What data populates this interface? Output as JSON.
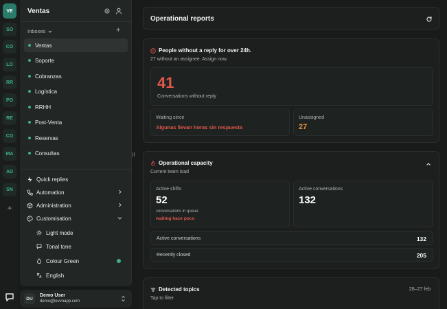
{
  "workspaces": [
    {
      "code": "VE",
      "active": true
    },
    {
      "code": "SO"
    },
    {
      "code": "CO"
    },
    {
      "code": "LO"
    },
    {
      "code": "RR"
    },
    {
      "code": "PO"
    },
    {
      "code": "RE"
    },
    {
      "code": "CO"
    },
    {
      "code": "MA"
    },
    {
      "code": "AD"
    },
    {
      "code": "SN"
    }
  ],
  "rail": {
    "add_label": "+"
  },
  "sidebar": {
    "title": "Ventas",
    "inboxes_label": "Inboxes",
    "add_label": "+",
    "inboxes": [
      {
        "label": "Ventas",
        "selected": true
      },
      {
        "label": "Soporte"
      },
      {
        "label": "Cobranzas"
      },
      {
        "label": "Logística"
      },
      {
        "label": "RRHH"
      },
      {
        "label": "Post-Venta"
      },
      {
        "label": "Reservas"
      },
      {
        "label": "Consultas"
      }
    ],
    "menu": {
      "quick_replies": "Quick replies",
      "automation": "Automation",
      "administration": "Administration",
      "customisation": "Customisation"
    },
    "customisation": {
      "light_mode": "Light mode",
      "tonal_tone": "Tonal tone",
      "colour": "Colour Green",
      "language": "English"
    }
  },
  "user": {
    "initials": "DU",
    "name": "Demo User",
    "email": "demo@levvoapp.com"
  },
  "header": {
    "title": "Operational reports"
  },
  "no_reply": {
    "title": "People without a reply for over 24h.",
    "subtitle": "27 without an assignee. Assign now.",
    "count": "41",
    "count_label": "Conversations without reply",
    "waiting_label": "Waiting since",
    "waiting_value": "Algunas llevan horas sin respuesta",
    "unassigned_label": "Unassigned",
    "unassigned_value": "27"
  },
  "capacity": {
    "title": "Operational capacity",
    "subtitle": "Current team load",
    "shifts_label": "Active shifts",
    "shifts_value": "52",
    "queue_label": "conversations in queue",
    "queue_status": "waiting hace poco",
    "active_conv_label": "Active conversations",
    "active_conv_value": "132",
    "rows": [
      {
        "label": "Active conversations",
        "value": "132"
      },
      {
        "label": "Recently closed",
        "value": "205"
      }
    ]
  },
  "topics": {
    "title": "Detected topics",
    "subtitle": "Tap to filter",
    "date_range": "28–27 feb"
  },
  "colors": {
    "accent": "#3fae8e",
    "danger": "#e2574c",
    "warning": "#e5933a"
  }
}
